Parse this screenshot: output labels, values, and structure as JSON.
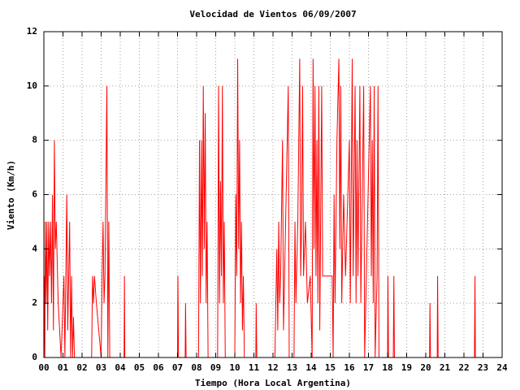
{
  "chart_data": {
    "type": "line",
    "title": "Velocidad de Vientos 06/09/2007",
    "x_label": "Tiempo (Hora Local Argentina)",
    "y_label": "Viento (Km/h)",
    "grid": true,
    "xlim": [
      0,
      24
    ],
    "ylim": [
      0,
      12
    ],
    "yticks": [
      0,
      2,
      4,
      6,
      8,
      10,
      12
    ],
    "xticks": [
      {
        "value": 0,
        "label": "00"
      },
      {
        "value": 1,
        "label": "01"
      },
      {
        "value": 2,
        "label": "02"
      },
      {
        "value": 3,
        "label": "03"
      },
      {
        "value": 4,
        "label": "04"
      },
      {
        "value": 5,
        "label": "05"
      },
      {
        "value": 6,
        "label": "06"
      },
      {
        "value": 7,
        "label": "07"
      },
      {
        "value": 8,
        "label": "08"
      },
      {
        "value": 9,
        "label": "09"
      },
      {
        "value": 10,
        "label": "10"
      },
      {
        "value": 11,
        "label": "11"
      },
      {
        "value": 12,
        "label": "12"
      },
      {
        "value": 13,
        "label": "13"
      },
      {
        "value": 14,
        "label": "14"
      },
      {
        "value": 15,
        "label": "15"
      },
      {
        "value": 16,
        "label": "16"
      },
      {
        "value": 17,
        "label": "17"
      },
      {
        "value": 18,
        "label": "18"
      },
      {
        "value": 19,
        "label": "19"
      },
      {
        "value": 20,
        "label": "20"
      },
      {
        "value": 21,
        "label": "21"
      },
      {
        "value": 22,
        "label": "22"
      },
      {
        "value": 23,
        "label": "23"
      },
      {
        "value": 24,
        "label": "24"
      }
    ],
    "series": [
      {
        "color": "#ff0000",
        "x": [
          0,
          0.02,
          0.05,
          0.08,
          0.12,
          0.16,
          0.2,
          0.25,
          0.3,
          0.35,
          0.4,
          0.45,
          0.5,
          0.55,
          0.6,
          0.65,
          0.75,
          0.9,
          1.05,
          1.1,
          1.15,
          1.2,
          1.25,
          1.3,
          1.35,
          1.4,
          1.45,
          1.5,
          1.55,
          1.6,
          2.5,
          2.55,
          2.6,
          2.65,
          2.75,
          3.0,
          3.05,
          3.1,
          3.15,
          3.2,
          3.3,
          3.35,
          3.4,
          3.45,
          4.2,
          4.22,
          4.24,
          7.0,
          7.02,
          7.05,
          7.4,
          7.42,
          7.45,
          8.1,
          8.15,
          8.2,
          8.25,
          8.3,
          8.35,
          8.4,
          8.45,
          8.5,
          8.55,
          8.6,
          9.1,
          9.15,
          9.2,
          9.25,
          9.3,
          9.35,
          9.4,
          9.45,
          9.5,
          10.0,
          10.05,
          10.1,
          10.15,
          10.2,
          10.25,
          10.3,
          10.35,
          10.4,
          10.45,
          10.5,
          11.1,
          11.12,
          11.15,
          12.1,
          12.15,
          12.2,
          12.25,
          12.3,
          12.35,
          12.4,
          12.5,
          12.55,
          12.8,
          12.85,
          13.1,
          13.15,
          13.2,
          13.3,
          13.4,
          13.45,
          13.5,
          13.55,
          13.6,
          13.7,
          13.8,
          13.95,
          14.05,
          14.1,
          14.15,
          14.2,
          14.25,
          14.3,
          14.35,
          14.4,
          14.45,
          14.55,
          14.6,
          15.1,
          15.15,
          15.2,
          15.25,
          15.35,
          15.45,
          15.5,
          15.55,
          15.6,
          15.7,
          15.8,
          16.0,
          16.05,
          16.15,
          16.2,
          16.3,
          16.35,
          16.4,
          16.45,
          16.55,
          16.6,
          16.75,
          16.8,
          17.1,
          17.15,
          17.2,
          17.25,
          17.3,
          17.35,
          17.45,
          17.5,
          17.55,
          18.0,
          18.02,
          18.05,
          18.3,
          18.33,
          18.36,
          20.2,
          20.22,
          20.25,
          20.6,
          20.62,
          20.65,
          22.55,
          22.58,
          22.6
        ],
        "values": [
          0,
          3,
          0,
          5,
          2,
          5,
          1,
          5,
          3,
          5,
          2,
          6,
          1,
          8,
          4,
          5,
          2,
          0,
          3,
          0,
          3,
          6,
          1,
          3,
          5,
          0,
          3,
          0,
          1.5,
          0,
          0,
          3,
          2,
          3,
          2,
          0,
          3,
          5,
          2,
          3,
          10,
          0,
          5,
          0,
          0,
          3,
          0,
          0,
          3,
          0,
          0,
          2,
          0,
          0,
          8,
          2,
          8,
          3,
          10,
          4,
          9,
          2,
          5,
          0,
          0,
          10,
          2,
          6.5,
          3,
          10,
          2,
          5,
          0,
          0,
          6,
          3,
          11,
          4,
          8,
          2,
          5,
          1,
          3,
          0,
          0,
          2,
          0,
          0,
          2,
          4,
          1,
          5,
          2,
          3,
          8,
          1,
          10,
          0,
          0,
          5,
          2,
          5,
          11,
          3,
          5,
          10,
          3,
          5,
          2,
          3,
          0,
          11,
          4,
          10,
          3,
          8,
          2,
          10,
          1,
          10,
          3,
          3,
          0,
          6,
          2,
          8,
          11,
          4,
          10,
          2,
          6,
          3,
          8,
          2,
          11,
          3,
          10,
          2,
          8,
          3,
          10,
          2,
          10,
          0,
          10,
          3,
          8,
          2,
          10,
          0,
          3,
          10,
          0,
          0,
          3,
          0,
          0,
          3,
          0,
          0,
          2,
          0,
          0,
          3,
          0,
          0,
          3,
          0
        ]
      }
    ]
  }
}
